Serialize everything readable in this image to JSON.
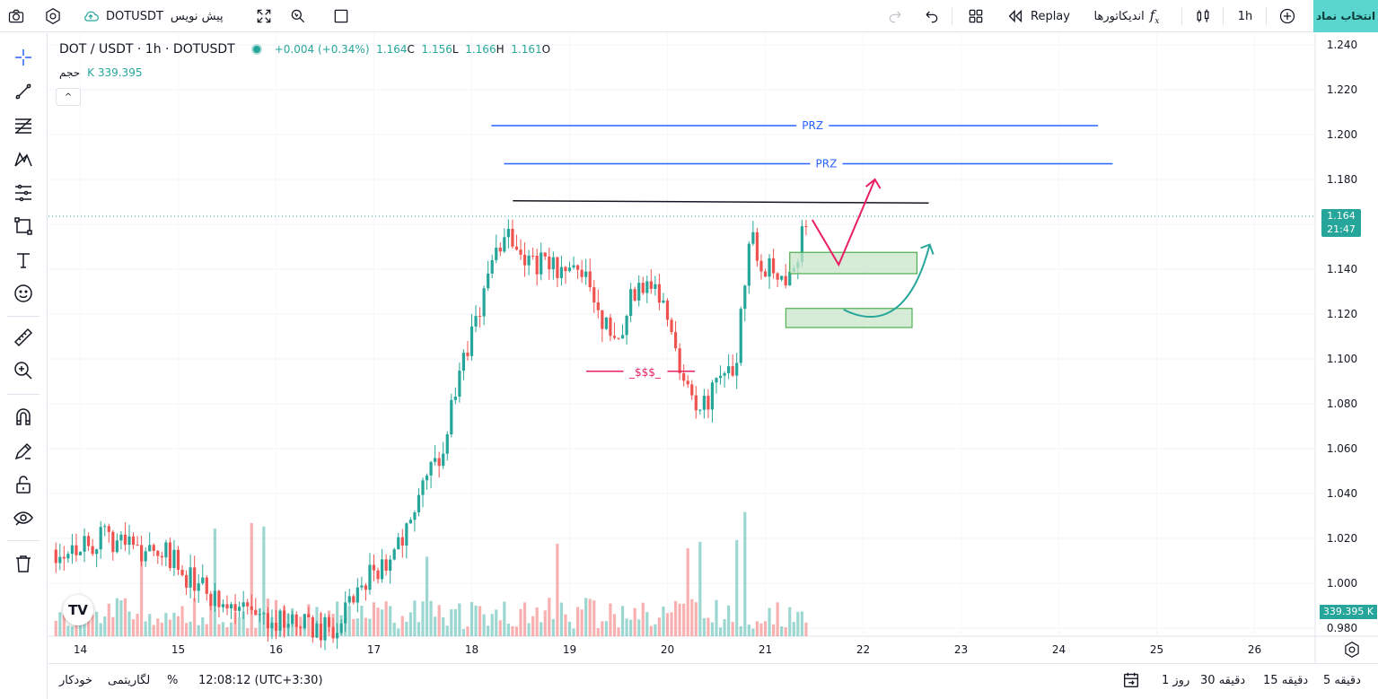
{
  "topbar": {
    "symbol": "DOTUSDT",
    "publish_label": "پیش نویس",
    "replay_label": "Replay",
    "indicators_label": "اندیکاتورها",
    "interval": "1h",
    "select_symbol_label": "انتخاب نماد"
  },
  "legend": {
    "title": "DOT / USDT · 1h · DOTUSDT",
    "change": "+0.004 (+0.34%)",
    "close": "1.164",
    "close_letter": "C",
    "low": "1.156",
    "low_letter": "L",
    "high": "1.166",
    "high_letter": "H",
    "open": "1.161",
    "open_letter": "O",
    "volume_label": "حجم",
    "volume_value": "K 339.395",
    "collapse_glyph": "^"
  },
  "price_scale": {
    "ticks": [
      "1.240",
      "1.220",
      "1.200",
      "1.180",
      "1.160",
      "1.140",
      "1.120",
      "1.100",
      "1.080",
      "1.060",
      "1.040",
      "1.020",
      "1.000",
      "0.980"
    ],
    "last_price": "1.164",
    "countdown": "21:47",
    "volume_tag": "339.395 K"
  },
  "time_scale": {
    "ticks": [
      "14",
      "15",
      "16",
      "17",
      "18",
      "19",
      "20",
      "21",
      "22",
      "23",
      "24",
      "25",
      "26"
    ]
  },
  "drawings": {
    "prz_upper_label": "PRZ",
    "prz_lower_label": "PRZ",
    "liquidity_label": "_$$$_"
  },
  "colors": {
    "up": "#26a69a",
    "down": "#ef5350",
    "prz_line": "#2962ff",
    "liquidity": "#e91e63",
    "zone_fill": "#c8e6c9",
    "zone_border": "#4caf50",
    "accent": "#5bd6cf"
  },
  "bottombar": {
    "timeframes": [
      "5 دقیقه",
      "15 دقیقه",
      "30 دقیقه",
      "1 روز"
    ],
    "clock": "12:08:12 (UTC+3:30)",
    "percent_label": "%",
    "log_label": "لگاریتمی",
    "auto_label": "خودکار"
  },
  "chart_data": {
    "type": "candlestick",
    "title": "DOT / USDT · 1h · DOTUSDT",
    "x_ticks": [
      "14",
      "15",
      "16",
      "17",
      "18",
      "19",
      "20",
      "21",
      "22",
      "23",
      "24",
      "25",
      "26"
    ],
    "ylim": [
      0.975,
      1.245
    ],
    "y_ticks": [
      1.24,
      1.22,
      1.2,
      1.18,
      1.16,
      1.14,
      1.12,
      1.1,
      1.08,
      1.06,
      1.04,
      1.02,
      1.0,
      0.98
    ],
    "segments": [
      {
        "day": 13.75,
        "price": 1.015
      },
      {
        "day": 14.3,
        "price": 1.02
      },
      {
        "day": 14.9,
        "price": 1.012
      },
      {
        "day": 15.4,
        "price": 0.99
      },
      {
        "day": 15.9,
        "price": 0.985
      },
      {
        "day": 16.6,
        "price": 0.978
      },
      {
        "day": 16.9,
        "price": 1.0
      },
      {
        "day": 17.3,
        "price": 1.02
      },
      {
        "day": 17.7,
        "price": 1.06
      },
      {
        "day": 18.05,
        "price": 1.12
      },
      {
        "day": 18.35,
        "price": 1.16
      },
      {
        "day": 18.55,
        "price": 1.145
      },
      {
        "day": 19.2,
        "price": 1.135
      },
      {
        "day": 19.45,
        "price": 1.105
      },
      {
        "day": 19.7,
        "price": 1.135
      },
      {
        "day": 19.95,
        "price": 1.13
      },
      {
        "day": 20.05,
        "price": 1.11
      },
      {
        "day": 20.25,
        "price": 1.08
      },
      {
        "day": 20.45,
        "price": 1.083
      },
      {
        "day": 20.7,
        "price": 1.1
      },
      {
        "day": 20.85,
        "price": 1.163
      },
      {
        "day": 20.95,
        "price": 1.143
      },
      {
        "day": 21.2,
        "price": 1.138
      },
      {
        "day": 21.35,
        "price": 1.15
      },
      {
        "day": 21.45,
        "price": 1.164
      }
    ],
    "last_price": 1.164,
    "last_volume": "339.395 K"
  }
}
